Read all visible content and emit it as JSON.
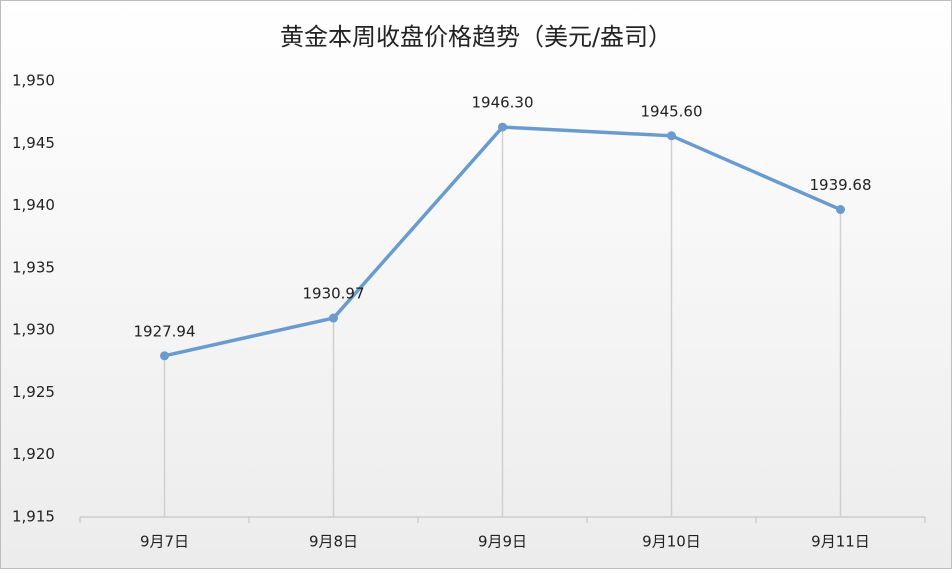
{
  "chart_data": {
    "type": "line",
    "title": "黄金本周收盘价格趋势（美元/盎司）",
    "categories": [
      "9月7日",
      "9月8日",
      "9月9日",
      "9月10日",
      "9月11日"
    ],
    "values": [
      1927.94,
      1930.97,
      1946.3,
      1945.6,
      1939.68
    ],
    "value_labels": [
      "1927.94",
      "1930.97",
      "1946.30",
      "1945.60",
      "1939.68"
    ],
    "color": "#6a9bcf",
    "ylim": [
      1915,
      1950
    ],
    "yticks": [
      {
        "value": 1915,
        "label": "1,915"
      },
      {
        "value": 1920,
        "label": "1,920"
      },
      {
        "value": 1925,
        "label": "1,925"
      },
      {
        "value": 1930,
        "label": "1,930"
      },
      {
        "value": 1935,
        "label": "1,935"
      },
      {
        "value": 1940,
        "label": "1,940"
      },
      {
        "value": 1945,
        "label": "1,945"
      },
      {
        "value": 1950,
        "label": "1,950"
      }
    ],
    "grid": false
  }
}
